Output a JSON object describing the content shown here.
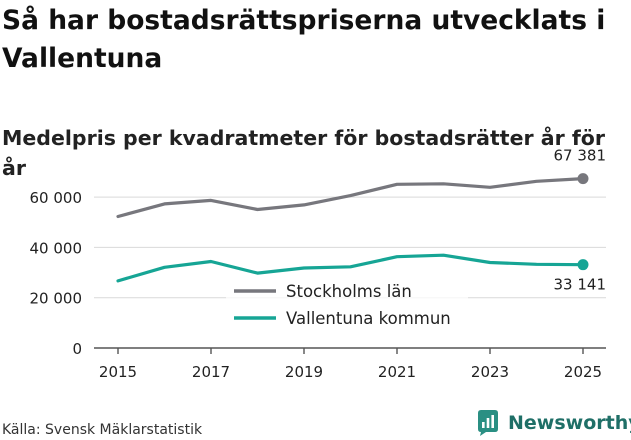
{
  "title": "Så har bostadsrättspriserna utvecklats i Vallentuna",
  "subtitle": "Medelpris per kvadratmeter för bostadsrätter år för år",
  "source": "Källa: Svensk Mäklarstatistik",
  "brand": {
    "name": "Newsworthy",
    "icon": "newsworthy-logo-icon"
  },
  "chart_data": {
    "type": "line",
    "x": [
      2015,
      2016,
      2017,
      2018,
      2019,
      2020,
      2021,
      2022,
      2023,
      2024,
      2025
    ],
    "series": [
      {
        "name": "Stockholms län",
        "color": "#77777d",
        "values": [
          52300,
          57300,
          58700,
          55100,
          56900,
          60600,
          65100,
          65300,
          63900,
          66300,
          67381
        ],
        "end_label": "67 381"
      },
      {
        "name": "Vallentuna kommun",
        "color": "#16a595",
        "values": [
          26700,
          32100,
          34400,
          29800,
          31800,
          32300,
          36300,
          36900,
          34000,
          33300,
          33141
        ],
        "end_label": "33 141"
      }
    ],
    "y_ticks": [
      0,
      20000,
      40000,
      60000
    ],
    "y_tick_labels": [
      "0",
      "20 000",
      "40 000",
      "60 000"
    ],
    "x_ticks": [
      2015,
      2017,
      2019,
      2021,
      2023,
      2025
    ],
    "x_tick_labels": [
      "2015",
      "2017",
      "2019",
      "2021",
      "2023",
      "2025"
    ],
    "xlim": [
      2015,
      2025
    ],
    "ylim": [
      0,
      70000
    ],
    "grid": true,
    "legend": "center"
  }
}
